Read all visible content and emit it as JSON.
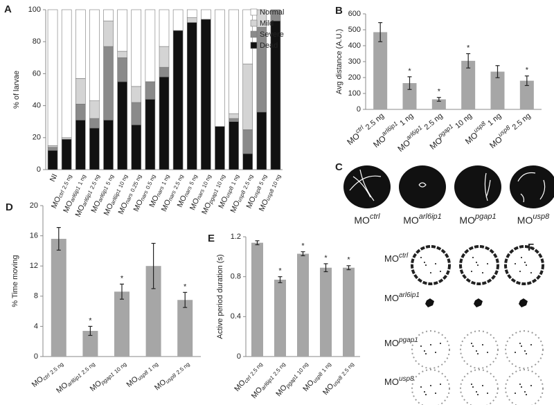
{
  "chart_data": [
    {
      "panel": "A",
      "type": "stacked_bar",
      "ylabel": "% of larvae",
      "categories": [
        {
          "prefix": "NI"
        },
        {
          "prefix": "MO",
          "gene": "ctrl",
          "dose": "2.5 ng"
        },
        {
          "prefix": "MO",
          "gene": "arl6ip1",
          "dose": "1 ng"
        },
        {
          "prefix": "MO",
          "gene": "arl6ip1",
          "dose": "2.5 ng"
        },
        {
          "prefix": "MO",
          "gene": "arl6ip1",
          "dose": "5 ng"
        },
        {
          "prefix": "MO",
          "gene": "arl6ip1",
          "dose": "10 ng"
        },
        {
          "prefix": "MO",
          "gene": "nars",
          "dose": "0.25 ng"
        },
        {
          "prefix": "MO",
          "gene": "nars",
          "dose": "0.5 ng"
        },
        {
          "prefix": "MO",
          "gene": "nars",
          "dose": "1 ng"
        },
        {
          "prefix": "MO",
          "gene": "nars",
          "dose": "2.5 ng"
        },
        {
          "prefix": "MO",
          "gene": "nars",
          "dose": "5 ng"
        },
        {
          "prefix": "MO",
          "gene": "nars",
          "dose": "10 ng"
        },
        {
          "prefix": "MO",
          "gene": "pgap1",
          "dose": "10 ng"
        },
        {
          "prefix": "MO",
          "gene": "usp8",
          "dose": "1 ng"
        },
        {
          "prefix": "MO",
          "gene": "usp8",
          "dose": "2.5 ng"
        },
        {
          "prefix": "MO",
          "gene": "usp8",
          "dose": "5 ng"
        },
        {
          "prefix": "MO",
          "gene": "usp8",
          "dose": "10 ng"
        }
      ],
      "series": [
        {
          "name": "Dead",
          "color": "#111111",
          "values": [
            12,
            19,
            31,
            26,
            31,
            55,
            28,
            44,
            58,
            87,
            92,
            94,
            27,
            30,
            10,
            36,
            93
          ]
        },
        {
          "name": "Severe",
          "color": "#8a8a8a",
          "values": [
            2,
            0,
            10,
            6,
            46,
            15,
            14,
            11,
            6,
            0,
            0,
            0,
            0,
            2,
            15,
            53,
            7
          ]
        },
        {
          "name": "Mild",
          "color": "#d4d4d4",
          "values": [
            1,
            1,
            16,
            11,
            16,
            4,
            10,
            0,
            13,
            0,
            3,
            0,
            0,
            3,
            41,
            11,
            0
          ]
        },
        {
          "name": "Normal",
          "color": "#ffffff",
          "values": [
            85,
            80,
            43,
            57,
            7,
            26,
            48,
            45,
            23,
            13,
            5,
            6,
            73,
            65,
            34,
            0,
            0
          ]
        }
      ],
      "ylim": [
        0,
        100
      ],
      "yticks": [
        0,
        20,
        40,
        60,
        80,
        100
      ],
      "legend": "upper right"
    },
    {
      "panel": "B",
      "type": "bar",
      "ylabel": "Avg distance (A.U.)",
      "categories": [
        {
          "prefix": "MO",
          "gene": "ctrl",
          "dose": "2.5 ng"
        },
        {
          "prefix": "MO",
          "gene": "arl6ip1",
          "dose": "1 ng"
        },
        {
          "prefix": "MO",
          "gene": "arl6ip1",
          "dose": "2.5 ng"
        },
        {
          "prefix": "MO",
          "gene": "pgap1",
          "dose": "10 ng"
        },
        {
          "prefix": "MO",
          "gene": "usp8",
          "dose": "1 ng"
        },
        {
          "prefix": "MO",
          "gene": "usp8",
          "dose": "2.5 ng"
        }
      ],
      "values": [
        485,
        165,
        63,
        305,
        237,
        180
      ],
      "errors": [
        60,
        40,
        12,
        45,
        38,
        30
      ],
      "significance": [
        null,
        "*",
        "*",
        "*",
        null,
        "*"
      ],
      "color": "#a6a6a6",
      "ylim": [
        0,
        600
      ],
      "yticks": [
        0,
        100,
        200,
        300,
        400,
        500,
        600
      ]
    },
    {
      "panel": "D",
      "type": "bar",
      "ylabel": "% Time moving",
      "categories": [
        {
          "prefix": "MO",
          "gene": "ctrl",
          "dose": "2.5 ng"
        },
        {
          "prefix": "MO",
          "gene": "arl6ip1",
          "dose": "2.5 ng"
        },
        {
          "prefix": "MO",
          "gene": "pgap1",
          "dose": "10 ng"
        },
        {
          "prefix": "MO",
          "gene": "usp8",
          "dose": "1 ng"
        },
        {
          "prefix": "MO",
          "gene": "usp8",
          "dose": "2.5 ng"
        }
      ],
      "values": [
        15.6,
        3.4,
        8.6,
        12.0,
        7.5
      ],
      "errors": [
        1.5,
        0.6,
        1.0,
        3.0,
        1.0
      ],
      "significance": [
        null,
        "*",
        "*",
        null,
        "*"
      ],
      "color": "#a6a6a6",
      "ylim": [
        0,
        20
      ],
      "yticks": [
        0,
        4,
        8,
        12,
        16,
        20
      ]
    },
    {
      "panel": "E",
      "type": "bar",
      "ylabel": "Active period duration (s)",
      "categories": [
        {
          "prefix": "MO",
          "gene": "ctrl",
          "dose": "2.5 ng"
        },
        {
          "prefix": "MO",
          "gene": "arl6ip1",
          "dose": "2.5 ng"
        },
        {
          "prefix": "MO",
          "gene": "pgap1",
          "dose": "10 ng"
        },
        {
          "prefix": "MO",
          "gene": "usp8",
          "dose": "1 ng"
        },
        {
          "prefix": "MO",
          "gene": "usp8",
          "dose": "2.5 ng"
        }
      ],
      "values": [
        1.14,
        0.77,
        1.03,
        0.89,
        0.89
      ],
      "errors": [
        0.02,
        0.03,
        0.02,
        0.04,
        0.02
      ],
      "significance": [
        null,
        "*",
        "*",
        "*",
        "*"
      ],
      "color": "#a6a6a6",
      "ylim": [
        0,
        1.2
      ],
      "yticks": [
        0,
        0.4,
        0.8,
        1.2
      ]
    }
  ],
  "panel_c": {
    "panel": "C",
    "labels": [
      {
        "prefix": "MO",
        "gene": "ctrl"
      },
      {
        "prefix": "MO",
        "gene": "arl6ip1"
      },
      {
        "prefix": "MO",
        "gene": "pgap1"
      },
      {
        "prefix": "MO",
        "gene": "usp8"
      }
    ]
  },
  "panel_f": {
    "panel": "F",
    "labels": [
      {
        "prefix": "MO",
        "gene": "ctrl"
      },
      {
        "prefix": "MO",
        "gene": "arl6ip1"
      },
      {
        "prefix": "MO",
        "gene": "pgap1"
      },
      {
        "prefix": "MO",
        "gene": "usp8"
      }
    ]
  }
}
